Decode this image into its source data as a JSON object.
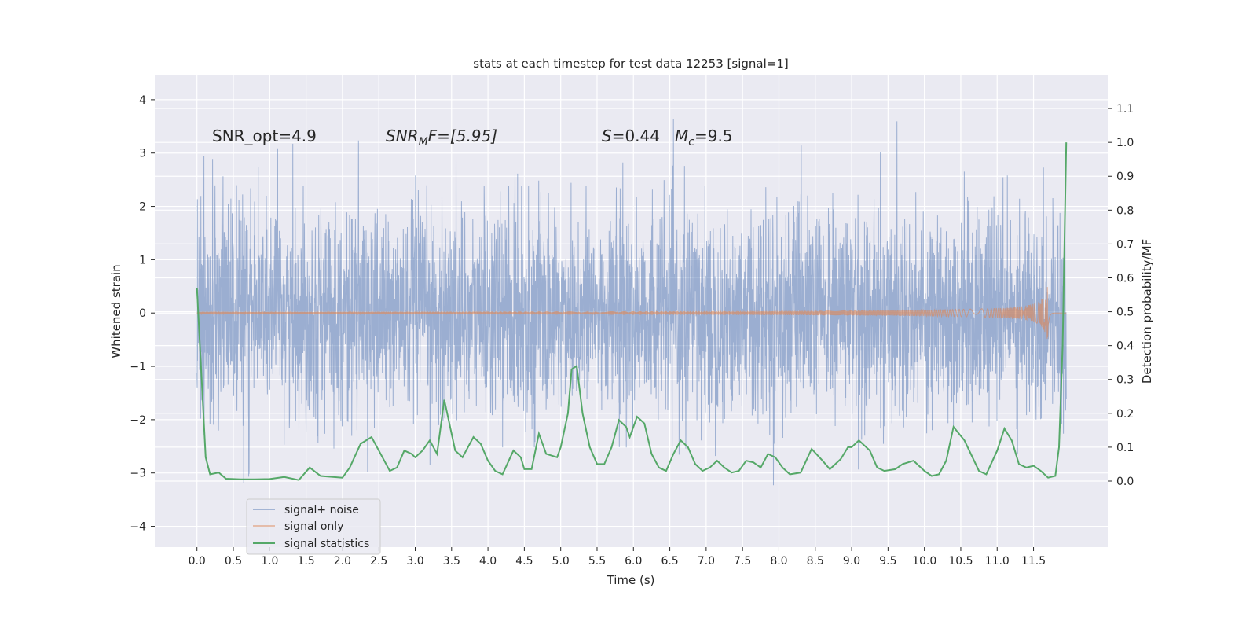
{
  "chart_data": {
    "type": "line",
    "title": "stats at each timestep for test data 12253 [signal=1]",
    "xlabel": "Time (s)",
    "ylabel": "Whitened strain",
    "y2label": "Detection probability/MF",
    "xlim": [
      -0.58,
      12.52
    ],
    "ylim": [
      -4.39,
      4.47
    ],
    "y2lim": [
      -0.195,
      1.2
    ],
    "grid": true,
    "x_ticks": [
      "0.0",
      "0.5",
      "1.0",
      "1.5",
      "2.0",
      "2.5",
      "3.0",
      "3.5",
      "4.0",
      "4.5",
      "5.0",
      "5.5",
      "6.0",
      "6.5",
      "7.0",
      "7.5",
      "8.0",
      "8.5",
      "9.0",
      "9.5",
      "10.0",
      "10.5",
      "11.0",
      "11.5"
    ],
    "x_tick_values": [
      0,
      0.5,
      1,
      1.5,
      2,
      2.5,
      3,
      3.5,
      4,
      4.5,
      5,
      5.5,
      6,
      6.5,
      7,
      7.5,
      8,
      8.5,
      9,
      9.5,
      10,
      10.5,
      11,
      11.5
    ],
    "y_ticks": [
      "−4",
      "−3",
      "−2",
      "−1",
      "0",
      "1",
      "2",
      "3",
      "4"
    ],
    "y_tick_values": [
      -4,
      -3,
      -2,
      -1,
      0,
      1,
      2,
      3,
      4
    ],
    "y2_ticks": [
      "0.0",
      "0.1",
      "0.2",
      "0.3",
      "0.4",
      "0.5",
      "0.6",
      "0.7",
      "0.8",
      "0.9",
      "1.0",
      "1.1"
    ],
    "y2_tick_values": [
      0,
      0.1,
      0.2,
      0.3,
      0.4,
      0.5,
      0.6,
      0.7,
      0.8,
      0.9,
      1.0,
      1.1
    ],
    "annotations": {
      "snr_opt": "SNR_opt=4.9",
      "snr_mf_main": "SNR",
      "snr_mf_sub": "M",
      "snr_mf_rest": "F=[5.95]",
      "s_var": "S",
      "s_rest": "=0.44",
      "mc_var": "M",
      "mc_sub": "c",
      "mc_rest": "=9.5"
    },
    "legend_position": "lower-left",
    "series": [
      {
        "name": "signal+ noise",
        "color": "#4c72b0",
        "kind": "noise",
        "t_end": 11.95,
        "std": 0.95,
        "max_abs": 4.1
      },
      {
        "name": "signal only",
        "color": "#dd8452",
        "kind": "chirp",
        "t_end": 11.95,
        "peak_time": 11.7,
        "peak_amplitude": 0.65
      },
      {
        "name": "signal statistics",
        "color": "#55a868",
        "kind": "line",
        "axis": "right",
        "x": [
          0,
          0.12,
          0.18,
          0.3,
          0.4,
          0.6,
          0.8,
          1.0,
          1.2,
          1.4,
          1.55,
          1.7,
          2.0,
          2.1,
          2.25,
          2.4,
          2.5,
          2.65,
          2.75,
          2.85,
          2.95,
          3.0,
          3.1,
          3.2,
          3.3,
          3.4,
          3.55,
          3.65,
          3.8,
          3.9,
          4.0,
          4.1,
          4.2,
          4.35,
          4.45,
          4.5,
          4.6,
          4.7,
          4.8,
          4.95,
          5.0,
          5.1,
          5.15,
          5.22,
          5.3,
          5.4,
          5.5,
          5.6,
          5.7,
          5.8,
          5.9,
          5.95,
          6.05,
          6.15,
          6.25,
          6.35,
          6.45,
          6.55,
          6.65,
          6.75,
          6.85,
          6.95,
          7.05,
          7.15,
          7.25,
          7.35,
          7.45,
          7.55,
          7.65,
          7.75,
          7.85,
          7.95,
          8.05,
          8.15,
          8.3,
          8.45,
          8.6,
          8.7,
          8.85,
          8.95,
          9.0,
          9.1,
          9.25,
          9.35,
          9.45,
          9.6,
          9.7,
          9.85,
          10.0,
          10.1,
          10.2,
          10.3,
          10.4,
          10.55,
          10.75,
          10.85,
          11.0,
          11.1,
          11.2,
          11.3,
          11.4,
          11.5,
          11.6,
          11.7,
          11.8,
          11.85,
          11.9,
          11.95
        ],
        "y": [
          0.57,
          0.07,
          0.02,
          0.025,
          0.007,
          0.005,
          0.005,
          0.006,
          0.012,
          0.003,
          0.04,
          0.015,
          0.01,
          0.04,
          0.11,
          0.13,
          0.09,
          0.03,
          0.04,
          0.09,
          0.08,
          0.07,
          0.09,
          0.12,
          0.08,
          0.24,
          0.09,
          0.07,
          0.13,
          0.11,
          0.06,
          0.03,
          0.02,
          0.09,
          0.07,
          0.035,
          0.035,
          0.14,
          0.08,
          0.07,
          0.1,
          0.2,
          0.33,
          0.34,
          0.2,
          0.1,
          0.05,
          0.05,
          0.1,
          0.18,
          0.16,
          0.13,
          0.19,
          0.17,
          0.08,
          0.04,
          0.03,
          0.08,
          0.12,
          0.1,
          0.05,
          0.03,
          0.04,
          0.06,
          0.04,
          0.025,
          0.03,
          0.06,
          0.055,
          0.04,
          0.08,
          0.07,
          0.04,
          0.02,
          0.025,
          0.095,
          0.06,
          0.035,
          0.065,
          0.1,
          0.1,
          0.12,
          0.09,
          0.04,
          0.03,
          0.035,
          0.05,
          0.06,
          0.03,
          0.015,
          0.02,
          0.06,
          0.16,
          0.12,
          0.03,
          0.02,
          0.09,
          0.155,
          0.12,
          0.05,
          0.04,
          0.045,
          0.03,
          0.01,
          0.015,
          0.1,
          0.4,
          1.0
        ]
      }
    ]
  }
}
